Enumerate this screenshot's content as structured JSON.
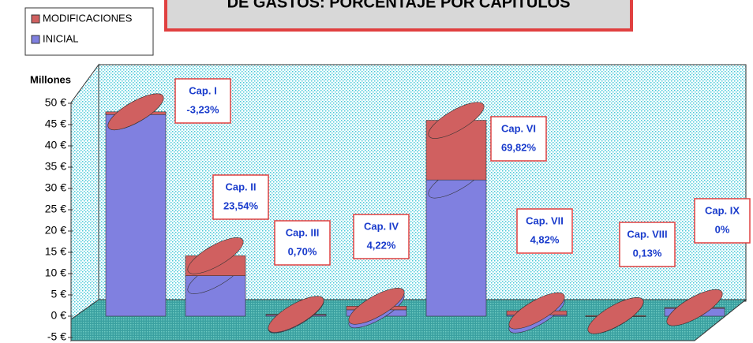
{
  "chart_data": {
    "type": "bar",
    "title": "DE GASTOS: PORCENTAJE POR CAPITULOS",
    "y_axis_label": "Millones",
    "categories": [
      null,
      null,
      null,
      null,
      null,
      null,
      null,
      null
    ],
    "series": [
      {
        "name": "INICIAL",
        "color": "#8080e0",
        "values": [
          48,
          9.5,
          0.3,
          1.5,
          32,
          0.3,
          0.1,
          2
        ]
      },
      {
        "name": "MODIFICACIONES",
        "color": "#d06060",
        "values": [
          -0.65,
          4.7,
          0.14,
          0.85,
          14,
          0.96,
          0.03,
          0
        ]
      }
    ],
    "annotations": [
      {
        "name": "Cap. I",
        "text": "-3,23%"
      },
      {
        "name": "Cap. II",
        "text": "23,54%"
      },
      {
        "name": "Cap. III",
        "text": "0,70%"
      },
      {
        "name": "Cap. IV",
        "text": "4,22%"
      },
      {
        "name": "Cap. VI",
        "text": "69,82%"
      },
      {
        "name": "Cap. VII",
        "text": "4,82%"
      },
      {
        "name": "Cap. VIII",
        "text": "0,13%"
      },
      {
        "name": "Cap. IX",
        "text": "0%"
      }
    ],
    "ylim": [
      -5,
      50
    ],
    "yticks": [
      {
        "value": -5,
        "label": "-5 €"
      },
      {
        "value": 0,
        "label": "0 €"
      },
      {
        "value": 5,
        "label": "5 €"
      },
      {
        "value": 10,
        "label": "10 €"
      },
      {
        "value": 15,
        "label": "15 €"
      },
      {
        "value": 20,
        "label": "20 €"
      },
      {
        "value": 25,
        "label": "25 €"
      },
      {
        "value": 30,
        "label": "30 €"
      },
      {
        "value": 35,
        "label": "35 €"
      },
      {
        "value": 40,
        "label": "40 €"
      },
      {
        "value": 45,
        "label": "45 €"
      },
      {
        "value": 50,
        "label": "50 €"
      }
    ],
    "legend": "top-left",
    "stacked": true
  }
}
